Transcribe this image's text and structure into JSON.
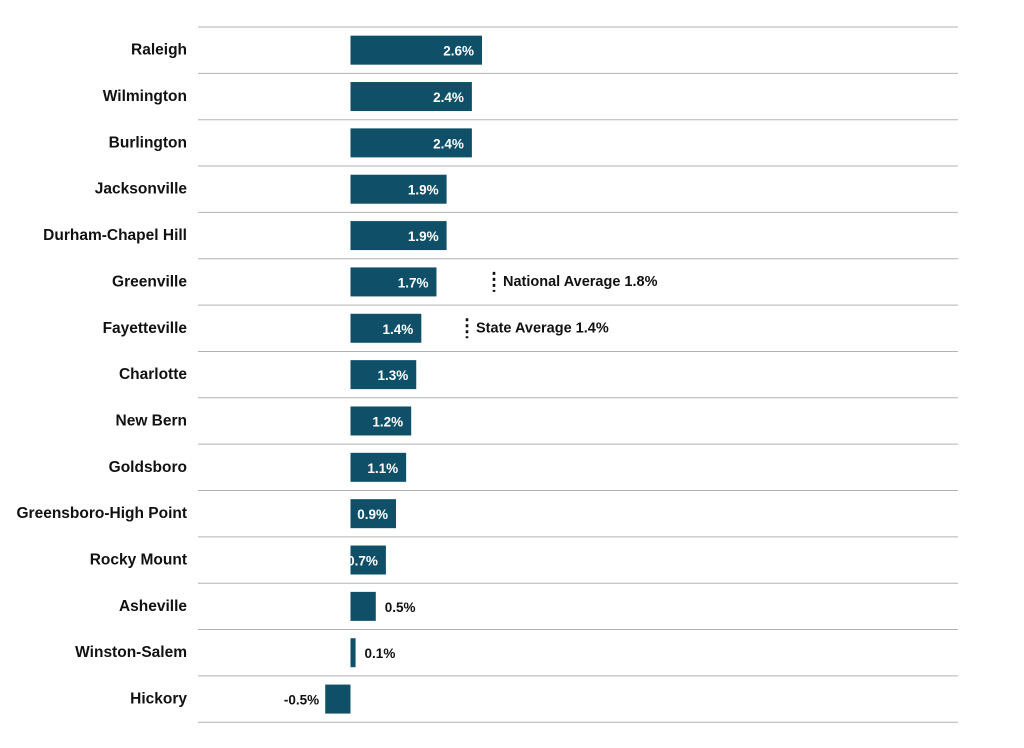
{
  "chart_data": {
    "type": "bar",
    "orientation": "horizontal",
    "title": "",
    "xlabel": "",
    "ylabel": "",
    "categories": [
      "Raleigh",
      "Wilmington",
      "Burlington",
      "Jacksonville",
      "Durham-Chapel Hill",
      "Greenville",
      "Fayetteville",
      "Charlotte",
      "New Bern",
      "Goldsboro",
      "Greensboro-High Point",
      "Rocky Mount",
      "Asheville",
      "Winston-Salem",
      "Hickory"
    ],
    "values": [
      2.6,
      2.4,
      2.4,
      1.9,
      1.9,
      1.7,
      1.4,
      1.3,
      1.2,
      1.1,
      0.9,
      0.7,
      0.5,
      0.1,
      -0.5
    ],
    "value_labels": [
      "2.6%",
      "2.4%",
      "2.4%",
      "1.9%",
      "1.9%",
      "1.7%",
      "1.4%",
      "1.3%",
      "1.2%",
      "1.1%",
      "0.9%",
      "0.7%",
      "0.5%",
      "0.1%",
      "-0.5%"
    ],
    "unit": "%",
    "xlim": [
      -0.5,
      2.6
    ],
    "grid": true,
    "reference_lines": [
      {
        "label": "National Average 1.8%",
        "value": 1.8
      },
      {
        "label": "State Average 1.4%",
        "value": 1.4
      }
    ],
    "colors": {
      "bar": "#0f5068",
      "label_inside": "#ffffff",
      "label_outside": "#111111",
      "gridline": "#b3b3b3"
    }
  }
}
